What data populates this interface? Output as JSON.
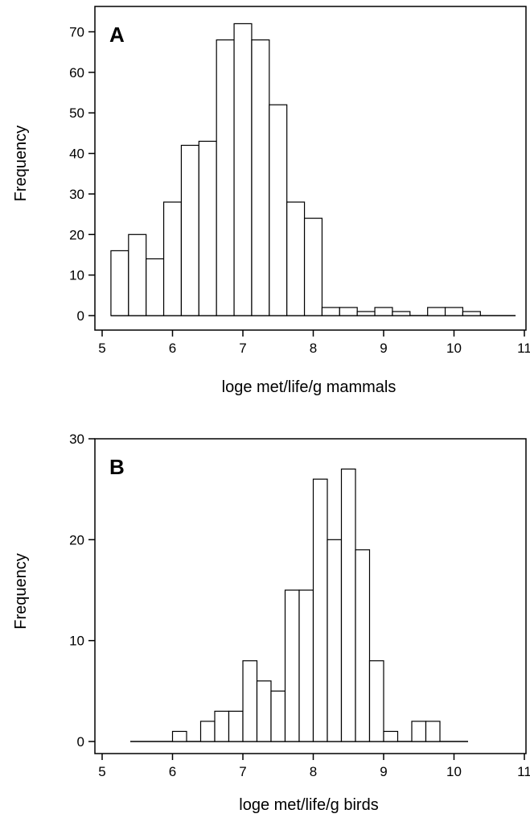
{
  "chart_data": [
    {
      "type": "bar",
      "panel_label": "A",
      "xlabel": "loge met/life/g mammals",
      "ylabel": "Frequency",
      "xlim": [
        5,
        11
      ],
      "ylim": [
        0,
        75
      ],
      "xticks": [
        "5",
        "6",
        "7",
        "8",
        "9",
        "10",
        "11"
      ],
      "yticks": [
        "0",
        "10",
        "20",
        "30",
        "40",
        "50",
        "60",
        "70"
      ],
      "bin_width": 0.25,
      "bin_starts": [
        5.125,
        5.375,
        5.625,
        5.875,
        6.125,
        6.375,
        6.625,
        6.875,
        7.125,
        7.375,
        7.625,
        7.875,
        8.125,
        8.375,
        8.625,
        8.875,
        9.125,
        9.375,
        9.625,
        9.875,
        10.125
      ],
      "values": [
        16,
        20,
        14,
        28,
        42,
        43,
        68,
        72,
        68,
        52,
        28,
        24,
        2,
        2,
        1,
        2,
        1,
        0,
        2,
        2,
        1
      ],
      "baseline_range": [
        5.125,
        10.875
      ]
    },
    {
      "type": "bar",
      "panel_label": "B",
      "xlabel": "loge met/life/g birds",
      "ylabel": "Frequency",
      "xlim": [
        5,
        11
      ],
      "ylim": [
        0,
        30
      ],
      "xticks": [
        "5",
        "6",
        "7",
        "8",
        "9",
        "10",
        "11"
      ],
      "yticks": [
        "0",
        "10",
        "20",
        "30"
      ],
      "bin_width": 0.2,
      "bin_starts": [
        6.0,
        6.2,
        6.4,
        6.6,
        6.8,
        7.0,
        7.2,
        7.4,
        7.6,
        7.8,
        8.0,
        8.2,
        8.4,
        8.6,
        8.8,
        9.0,
        9.2,
        9.4,
        9.6
      ],
      "values": [
        1,
        0,
        2,
        3,
        3,
        8,
        6,
        5,
        15,
        15,
        26,
        20,
        27,
        19,
        8,
        1,
        0,
        2,
        2
      ],
      "baseline_range": [
        5.4,
        10.2
      ]
    }
  ]
}
